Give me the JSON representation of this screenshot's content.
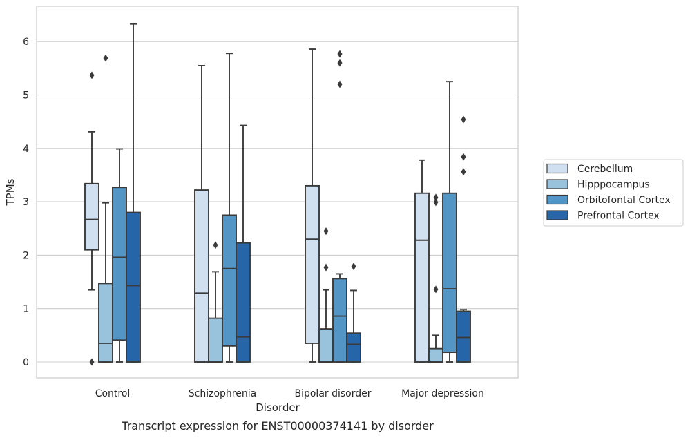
{
  "chart_data": {
    "type": "box",
    "caption": "Transcript expression for ENST00000374141 by disorder",
    "xlabel": "Disorder",
    "ylabel": "TPMs",
    "ylim": [
      -0.3,
      6.65
    ],
    "yticks": [
      0,
      1,
      2,
      3,
      4,
      5,
      6
    ],
    "grid": "horizontal",
    "legend_position": "right",
    "categories": [
      "Control",
      "Schizophrenia",
      "Bipolar disorder",
      "Major depression"
    ],
    "series": [
      {
        "name": "Cerebellum",
        "color": "#d0e0f0",
        "boxes": [
          {
            "q1": 2.1,
            "median": 2.67,
            "q3": 3.34,
            "whisker_low": 1.35,
            "whisker_high": 4.31,
            "outliers": [
              5.37,
              0.0
            ]
          },
          {
            "q1": 0.0,
            "median": 1.29,
            "q3": 3.22,
            "whisker_low": 0.0,
            "whisker_high": 5.55,
            "outliers": []
          },
          {
            "q1": 0.35,
            "median": 2.3,
            "q3": 3.3,
            "whisker_low": 0.0,
            "whisker_high": 5.86,
            "outliers": []
          },
          {
            "q1": 0.0,
            "median": 2.28,
            "q3": 3.16,
            "whisker_low": 0.0,
            "whisker_high": 3.78,
            "outliers": []
          }
        ]
      },
      {
        "name": "Hipppocampus",
        "color": "#99c2dc",
        "boxes": [
          {
            "q1": 0.0,
            "median": 0.35,
            "q3": 1.47,
            "whisker_low": 0.0,
            "whisker_high": 2.98,
            "outliers": [
              5.69
            ]
          },
          {
            "q1": 0.0,
            "median": 0.0,
            "q3": 0.82,
            "whisker_low": 0.0,
            "whisker_high": 1.69,
            "outliers": [
              2.19
            ]
          },
          {
            "q1": 0.0,
            "median": 0.0,
            "q3": 0.62,
            "whisker_low": 0.0,
            "whisker_high": 1.35,
            "outliers": [
              2.45,
              1.77
            ]
          },
          {
            "q1": 0.0,
            "median": 0.0,
            "q3": 0.25,
            "whisker_low": 0.0,
            "whisker_high": 0.5,
            "outliers": [
              3.08,
              2.99,
              1.36
            ]
          }
        ]
      },
      {
        "name": "Orbitofontal Cortex",
        "color": "#5396c6",
        "boxes": [
          {
            "q1": 0.41,
            "median": 1.96,
            "q3": 3.27,
            "whisker_low": 0.0,
            "whisker_high": 3.99,
            "outliers": []
          },
          {
            "q1": 0.3,
            "median": 1.75,
            "q3": 2.75,
            "whisker_low": 0.0,
            "whisker_high": 5.78,
            "outliers": []
          },
          {
            "q1": 0.0,
            "median": 0.86,
            "q3": 1.56,
            "whisker_low": 0.0,
            "whisker_high": 1.65,
            "outliers": [
              5.77,
              5.6,
              5.2
            ]
          },
          {
            "q1": 0.18,
            "median": 1.37,
            "q3": 3.16,
            "whisker_low": 0.0,
            "whisker_high": 5.25,
            "outliers": []
          }
        ]
      },
      {
        "name": "Prefrontal Cortex",
        "color": "#2565a8",
        "boxes": [
          {
            "q1": 0.0,
            "median": 1.43,
            "q3": 2.8,
            "whisker_low": 0.0,
            "whisker_high": 6.33,
            "outliers": []
          },
          {
            "q1": 0.0,
            "median": 0.47,
            "q3": 2.23,
            "whisker_low": 0.0,
            "whisker_high": 4.43,
            "outliers": []
          },
          {
            "q1": 0.0,
            "median": 0.33,
            "q3": 0.54,
            "whisker_low": 0.0,
            "whisker_high": 1.34,
            "outliers": [
              1.79
            ]
          },
          {
            "q1": 0.0,
            "median": 0.46,
            "q3": 0.95,
            "whisker_low": 0.0,
            "whisker_high": 0.98,
            "outliers": [
              4.54,
              3.84,
              3.56
            ]
          }
        ]
      }
    ]
  }
}
